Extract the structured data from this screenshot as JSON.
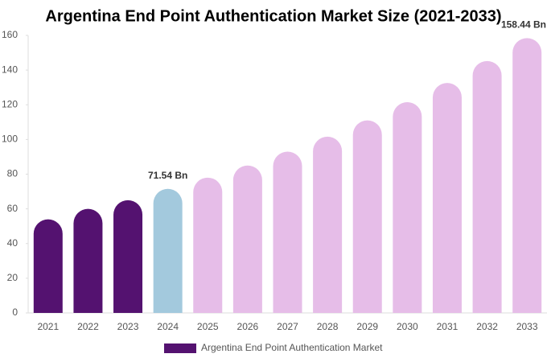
{
  "chart_data": {
    "type": "bar",
    "title": "Argentina End Point Authentication Market Size (2021-2033)",
    "categories": [
      "2021",
      "2022",
      "2023",
      "2024",
      "2025",
      "2026",
      "2027",
      "2028",
      "2029",
      "2030",
      "2031",
      "2032",
      "2033"
    ],
    "series": [
      {
        "name": "Argentina End Point Authentication Market",
        "color": "#541270",
        "values": [
          54,
          60,
          65,
          71.54,
          78,
          85,
          93,
          101.6,
          111,
          121.5,
          132.6,
          145.2,
          158.44
        ],
        "value_labels": [
          null,
          null,
          null,
          "71.54 Bn",
          null,
          null,
          null,
          null,
          null,
          null,
          null,
          null,
          "158.44 Bn"
        ]
      }
    ],
    "bar_colors": [
      "#541270",
      "#541270",
      "#541270",
      "#a3c9dd",
      "#e6bde8",
      "#e6bde8",
      "#e6bde8",
      "#e6bde8",
      "#e6bde8",
      "#e6bde8",
      "#e6bde8",
      "#e6bde8",
      "#e6bde8"
    ],
    "ylim": [
      0,
      160
    ],
    "yticks": [
      0,
      20,
      40,
      60,
      80,
      100,
      120,
      140,
      160
    ],
    "grid": false
  }
}
